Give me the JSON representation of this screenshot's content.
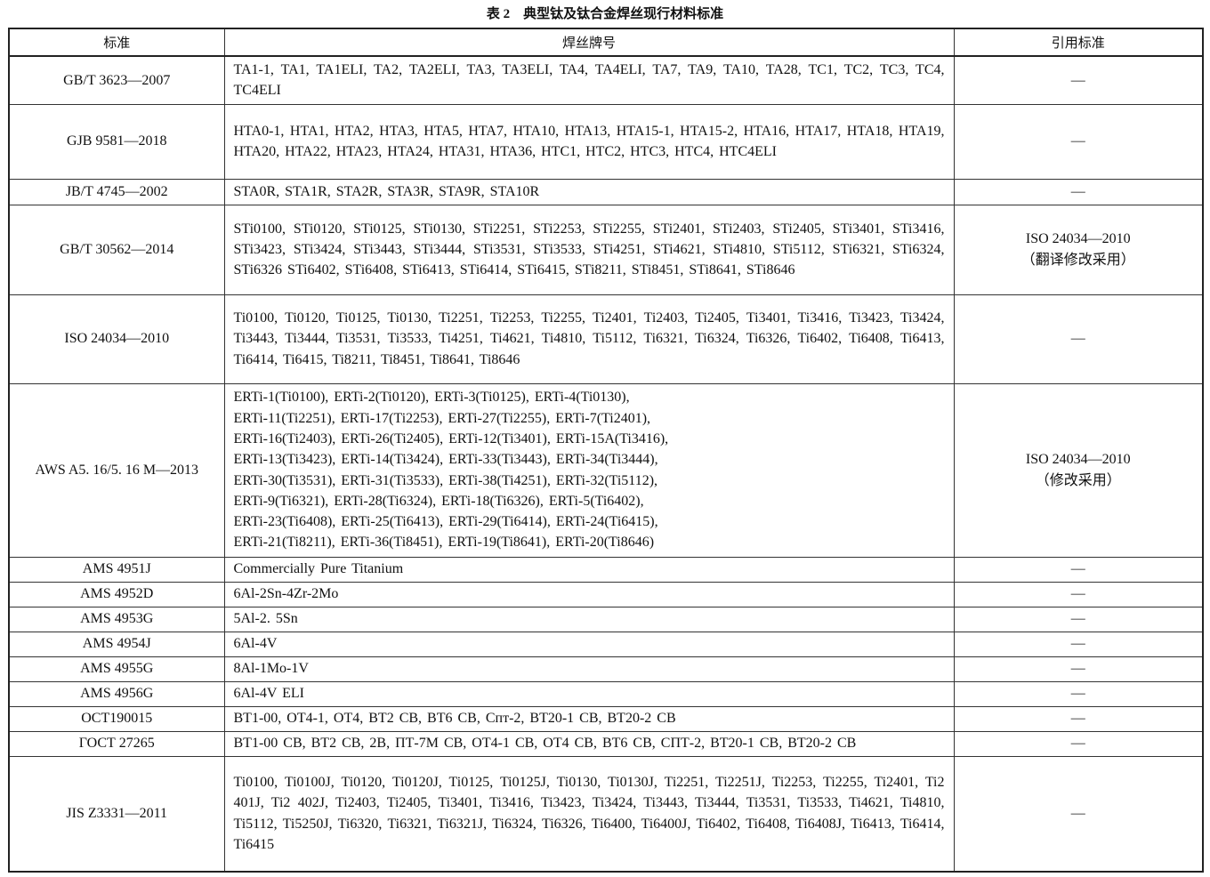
{
  "caption": "表 2　典型钛及钛合金焊丝现行材料标准",
  "headers": [
    "标准",
    "焊丝牌号",
    "引用标准"
  ],
  "rows": [
    {
      "standard": "GB/T 3623—2007",
      "grades": "TA1-1, TA1, TA1ELI, TA2, TA2ELI, TA3, TA3ELI, TA4, TA4ELI, TA7, TA9, TA10, TA28, TC1, TC2, TC3, TC4, TC4ELI",
      "ref": "—"
    },
    {
      "standard": "GJB 9581—2018",
      "grades": "HTA0-1, HTA1, HTA2, HTA3, HTA5, HTA7, HTA10, HTA13, HTA15-1, HTA15-2, HTA16, HTA17, HTA18, HTA19, HTA20, HTA22, HTA23, HTA24, HTA31, HTA36, HTC1, HTC2, HTC3, HTC4, HTC4ELI",
      "ref": "—"
    },
    {
      "standard": "JB/T 4745—2002",
      "grades": "STA0R, STA1R, STA2R, STA3R, STA9R, STA10R",
      "ref": "—"
    },
    {
      "standard": "GB/T 30562—2014",
      "grades": "STi0100, STi0120, STi0125, STi0130, STi2251, STi2253, STi2255, STi2401, STi2403, STi2405, STi3401, STi3416, STi3423, STi3424, STi3443, STi3444, STi3531, STi3533, STi4251, STi4621, STi4810, STi5112, STi6321, STi6324, STi6326  STi6402, STi6408, STi6413, STi6414, STi6415, STi8211, STi8451, STi8641, STi8646",
      "ref": "ISO 24034—2010\n（翻译修改采用）"
    },
    {
      "standard": "ISO 24034—2010",
      "grades": "Ti0100, Ti0120, Ti0125, Ti0130, Ti2251, Ti2253, Ti2255, Ti2401, Ti2403, Ti2405, Ti3401, Ti3416, Ti3423, Ti3424, Ti3443, Ti3444, Ti3531, Ti3533, Ti4251, Ti4621, Ti4810, Ti5112, Ti6321, Ti6324, Ti6326, Ti6402, Ti6408, Ti6413, Ti6414, Ti6415, Ti8211, Ti8451, Ti8641, Ti8646",
      "ref": "—"
    },
    {
      "standard": "AWS A5. 16/5. 16 M—2013",
      "grades": "ERTi-1(Ti0100), ERTi-2(Ti0120), ERTi-3(Ti0125), ERTi-4(Ti0130),\nERTi-11(Ti2251), ERTi-17(Ti2253), ERTi-27(Ti2255), ERTi-7(Ti2401),\nERTi-16(Ti2403), ERTi-26(Ti2405), ERTi-12(Ti3401), ERTi-15A(Ti3416),\nERTi-13(Ti3423), ERTi-14(Ti3424), ERTi-33(Ti3443), ERTi-34(Ti3444),\nERTi-30(Ti3531), ERTi-31(Ti3533), ERTi-38(Ti4251), ERTi-32(Ti5112),\nERTi-9(Ti6321), ERTi-28(Ti6324), ERTi-18(Ti6326), ERTi-5(Ti6402),\nERTi-23(Ti6408), ERTi-25(Ti6413), ERTi-29(Ti6414), ERTi-24(Ti6415),\nERTi-21(Ti8211), ERTi-36(Ti8451), ERTi-19(Ti8641), ERTi-20(Ti8646)",
      "ref": "ISO 24034—2010\n（修改采用）"
    },
    {
      "standard": "AMS 4951J",
      "grades": "Commercially Pure Titanium",
      "ref": "—"
    },
    {
      "standard": "AMS 4952D",
      "grades": "6Al-2Sn-4Zr-2Mo",
      "ref": "—"
    },
    {
      "standard": "AMS 4953G",
      "grades": "5Al-2. 5Sn",
      "ref": "—"
    },
    {
      "standard": "AMS 4954J",
      "grades": "6Al-4V",
      "ref": "—"
    },
    {
      "standard": "AMS 4955G",
      "grades": "8Al-1Mo-1V",
      "ref": "—"
    },
    {
      "standard": "AMS 4956G",
      "grades": "6Al-4V ELI",
      "ref": "—"
    },
    {
      "standard": "OCT190015",
      "grades": "BT1-00, OT4-1, OT4, BT2 CB, BT6 CB, Cпт-2, BT20-1 CB, BT20-2 CB",
      "ref": "—"
    },
    {
      "standard": "ГОСТ 27265",
      "grades": "BT1-00 CB, BT2 CB, 2B, ПТ-7M CB, OT4-1 CB, OT4 CB, BT6 CB, CПТ-2, BT20-1 CB, BT20-2 CB",
      "ref": "—"
    },
    {
      "standard": "JIS Z3331—2011",
      "grades": "Ti0100, Ti0100J, Ti0120, Ti0120J, Ti0125, Ti0125J, Ti0130, Ti0130J, Ti2251, Ti2251J, Ti2253, Ti2255, Ti2401, Ti2 401J, Ti2 402J, Ti2403, Ti2405, Ti3401, Ti3416, Ti3423, Ti3424, Ti3443, Ti3444, Ti3531, Ti3533, Ti4621, Ti4810, Ti5112, Ti5250J, Ti6320, Ti6321, Ti6321J, Ti6324, Ti6326, Ti6400, Ti6400J, Ti6402, Ti6408, Ti6408J, Ti6413, Ti6414, Ti6415",
      "ref": "—"
    }
  ]
}
